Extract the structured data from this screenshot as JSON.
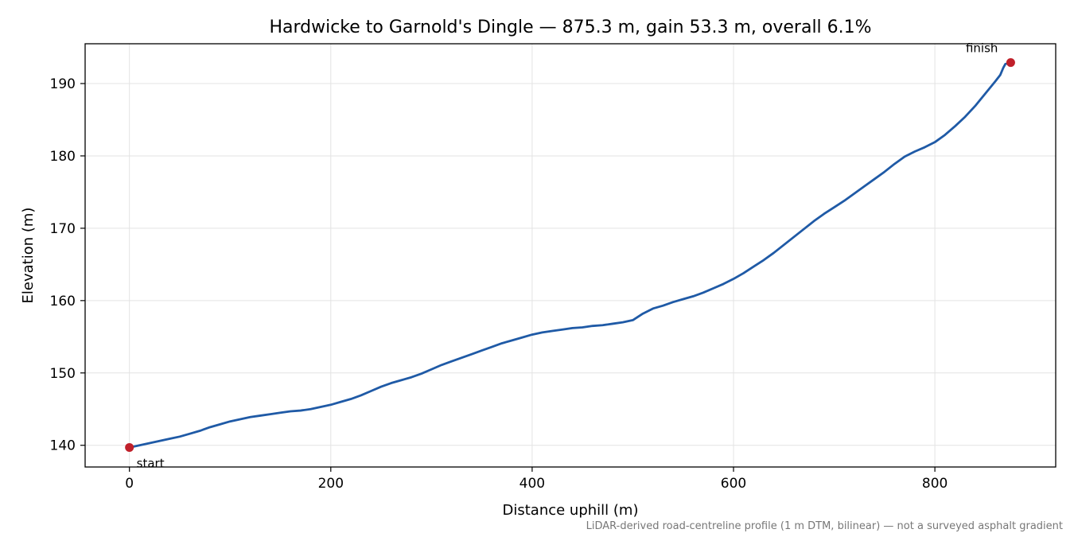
{
  "chart_data": {
    "type": "line",
    "title": "Hardwicke to Garnold's Dingle — 875.3 m, gain 53.3 m, overall 6.1%",
    "xlabel": "Distance uphill (m)",
    "ylabel": "Elevation (m)",
    "xlim": [
      -44,
      920
    ],
    "ylim": [
      137,
      195.5
    ],
    "xticks": [
      0,
      200,
      400,
      600,
      800
    ],
    "yticks": [
      140,
      150,
      160,
      170,
      180,
      190
    ],
    "grid": true,
    "caption": "LiDAR-derived road-centreline profile (1 m DTM, bilinear) — not a surveyed asphalt gradient",
    "line_color": "#1f5aa6",
    "marker_color": "#c0202a",
    "series": [
      {
        "x": [
          0,
          10,
          20,
          30,
          40,
          50,
          60,
          70,
          80,
          90,
          100,
          110,
          120,
          130,
          140,
          150,
          160,
          170,
          180,
          190,
          200,
          210,
          220,
          230,
          240,
          250,
          260,
          270,
          280,
          290,
          300,
          310,
          320,
          330,
          340,
          350,
          360,
          370,
          380,
          390,
          400,
          410,
          420,
          430,
          440,
          450,
          460,
          470,
          480,
          490,
          500,
          510,
          520,
          530,
          540,
          550,
          560,
          570,
          580,
          590,
          600,
          610,
          620,
          630,
          640,
          650,
          660,
          670,
          680,
          690,
          700,
          710,
          720,
          730,
          740,
          750,
          760,
          770,
          780,
          790,
          800,
          810,
          820,
          830,
          840,
          850,
          860,
          865,
          868,
          870,
          875.3
        ],
        "y": [
          139.7,
          140.0,
          140.3,
          140.6,
          140.9,
          141.2,
          141.6,
          142.0,
          142.5,
          142.9,
          143.3,
          143.6,
          143.9,
          144.1,
          144.3,
          144.5,
          144.7,
          144.8,
          145.0,
          145.3,
          145.6,
          146.0,
          146.4,
          146.9,
          147.5,
          148.1,
          148.6,
          149.0,
          149.4,
          149.9,
          150.5,
          151.1,
          151.6,
          152.1,
          152.6,
          153.1,
          153.6,
          154.1,
          154.5,
          154.9,
          155.3,
          155.6,
          155.8,
          156.0,
          156.2,
          156.3,
          156.5,
          156.6,
          156.8,
          157.0,
          157.3,
          158.2,
          158.9,
          159.3,
          159.8,
          160.2,
          160.6,
          161.1,
          161.7,
          162.3,
          163.0,
          163.8,
          164.7,
          165.6,
          166.6,
          167.7,
          168.8,
          169.9,
          171.0,
          172.0,
          172.9,
          173.8,
          174.8,
          175.8,
          176.8,
          177.8,
          178.9,
          179.9,
          180.6,
          181.2,
          181.9,
          182.9,
          184.1,
          185.4,
          186.9,
          188.6,
          190.3,
          191.2,
          192.2,
          192.7,
          192.9
        ]
      }
    ],
    "annotations": [
      {
        "text": "start",
        "x": 0,
        "y": 139.7
      },
      {
        "text": "finish",
        "x": 875.3,
        "y": 192.9
      }
    ]
  }
}
